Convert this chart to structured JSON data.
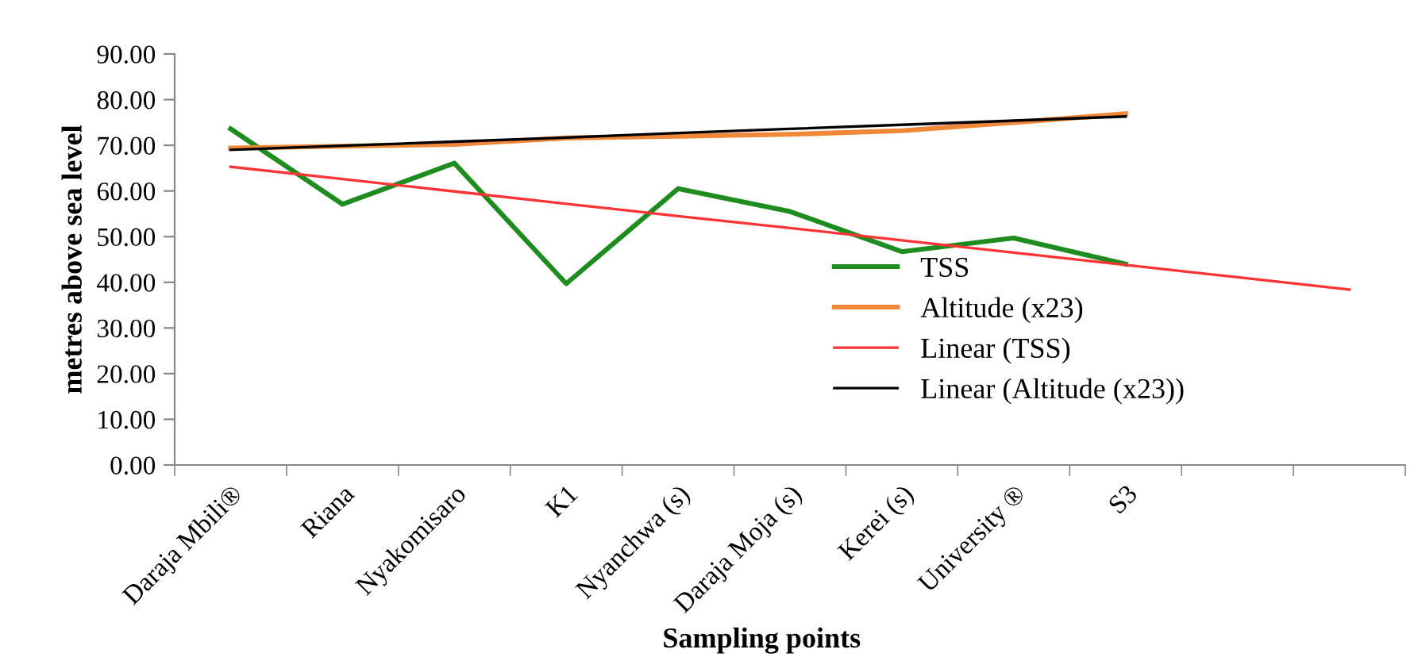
{
  "chart_data": {
    "type": "line",
    "xlabel": "Sampling points",
    "ylabel": "metres above sea level",
    "categories": [
      "Daraja Mbili®",
      "Riana",
      "Nyakomisaro",
      "K1",
      "Nyanchwa (s)",
      "Daraja Moja (s)",
      "Kerei (s)",
      "University ®",
      "S3",
      null,
      null
    ],
    "series": [
      {
        "name": "TSS",
        "color": "#1e8c1e",
        "values": [
          73.6,
          57.1,
          66.1,
          39.7,
          60.5,
          55.5,
          46.7,
          49.7,
          44.0,
          null,
          null
        ]
      },
      {
        "name": "Altitude (x23)",
        "color": "#f0883a",
        "values": [
          69.4,
          69.8,
          70.2,
          71.6,
          72.0,
          72.4,
          73.2,
          75.0,
          76.9,
          null,
          null
        ]
      },
      {
        "name": "Linear (TSS)",
        "color": "#ff3333",
        "values": [
          65.3,
          62.6,
          59.9,
          57.2,
          54.5,
          51.9,
          49.2,
          46.5,
          43.8,
          41.1,
          38.4
        ]
      },
      {
        "name": "Linear (Altitude (x23))",
        "color": "#000000",
        "values": [
          69.0,
          69.9,
          70.8,
          71.7,
          72.7,
          73.6,
          74.5,
          75.4,
          76.3,
          null,
          null
        ]
      }
    ],
    "ylim": [
      0,
      90
    ],
    "yticks": [
      {
        "value": 0,
        "label": "0.00"
      },
      {
        "value": 10,
        "label": "10.00"
      },
      {
        "value": 20,
        "label": "20.00"
      },
      {
        "value": 30,
        "label": "30.00"
      },
      {
        "value": 40,
        "label": "40.00"
      },
      {
        "value": 50,
        "label": "50.00"
      },
      {
        "value": 60,
        "label": "60.00"
      },
      {
        "value": 70,
        "label": "70.00"
      },
      {
        "value": 80,
        "label": "80.00"
      },
      {
        "value": 90,
        "label": "90.00"
      }
    ],
    "grid": false,
    "legend": "bottom right",
    "marker": "none",
    "line_style": "solid"
  }
}
